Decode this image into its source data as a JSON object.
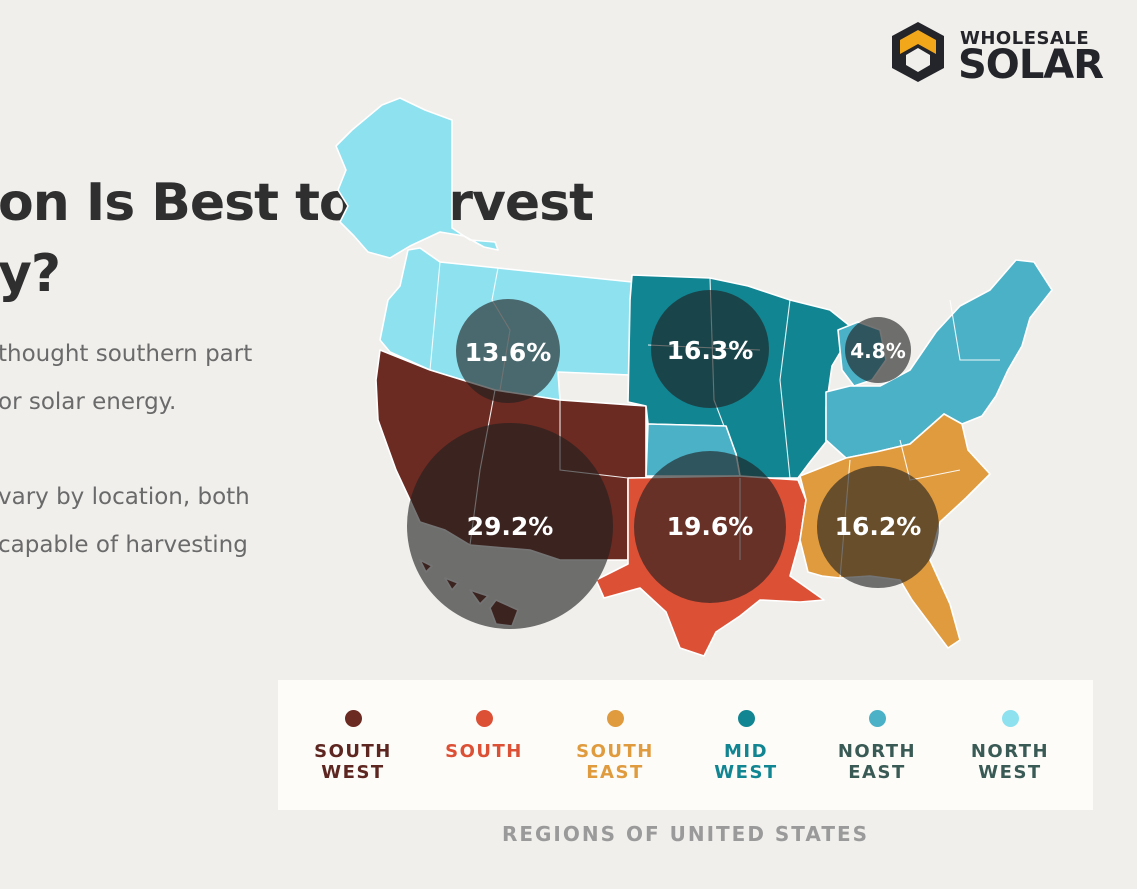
{
  "heading": {
    "line1": "on Is Best to Harvest",
    "line2": "y?"
  },
  "paragraph1": {
    "line1": "thought southern part",
    "line2": "or solar energy."
  },
  "paragraph2": {
    "line1": "vary by location, both",
    "line2": "capable of harvesting"
  },
  "logo": {
    "line1": "WHOLESALE",
    "line2": "SOLAR"
  },
  "regions": [
    {
      "id": "south-west",
      "label": "SOUTH\nWEST",
      "color": "#6b2a22",
      "text_color": "#5e2620",
      "value": "29.2%",
      "share": 29.2
    },
    {
      "id": "south",
      "label": "SOUTH",
      "color": "#dc5036",
      "text_color": "#dc5036",
      "value": "19.6%",
      "share": 19.6
    },
    {
      "id": "south-east",
      "label": "SOUTH\nEAST",
      "color": "#df9b3e",
      "text_color": "#df9b3e",
      "value": "16.2%",
      "share": 16.2
    },
    {
      "id": "mid-west",
      "label": "MID\nWEST",
      "color": "#128592",
      "text_color": "#128592",
      "value": "16.3%",
      "share": 16.3
    },
    {
      "id": "north-east",
      "label": "NORTH\nEAST",
      "color": "#4bb1c7",
      "text_color": "#3a5b55",
      "value": "4.8%",
      "share": 4.8
    },
    {
      "id": "north-west",
      "label": "NORTH\nWEST",
      "color": "#8ee1ef",
      "text_color": "#3a5b55",
      "value": "13.6%",
      "share": 13.6
    }
  ],
  "legend_caption": "REGIONS OF UNITED STATES"
}
